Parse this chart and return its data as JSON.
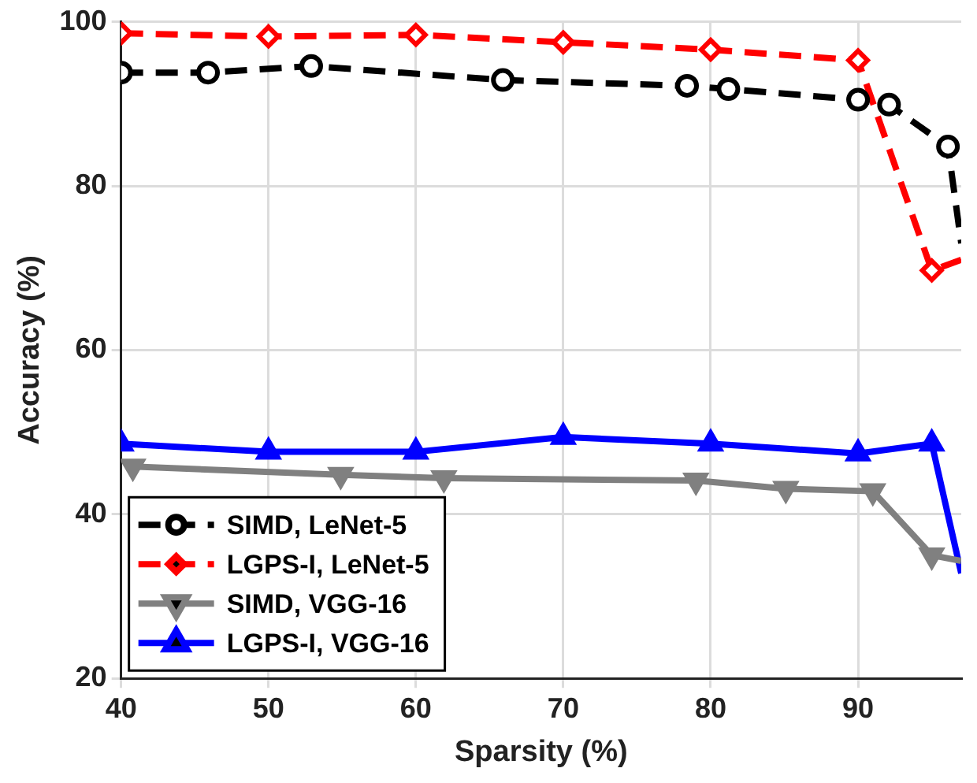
{
  "chart_data": {
    "type": "line",
    "xlabel": "Sparsity (%)",
    "ylabel": "Accuracy (%)",
    "xlim": [
      40,
      97
    ],
    "xticks": [
      40,
      50,
      60,
      70,
      80,
      90
    ],
    "ylim": [
      20,
      100
    ],
    "yticks": [
      20,
      40,
      60,
      80,
      100
    ],
    "grid": true,
    "legend": "bottom left",
    "series": [
      {
        "name": "SIMD, LeNet-5",
        "color": "#000000",
        "marker": "circle",
        "line_style": "dashed",
        "x": [
          40,
          45.9,
          52.9,
          65.9,
          78.4,
          81.2,
          90,
          92.1,
          96.1,
          97
        ],
        "values": [
          93.8,
          93.8,
          94.6,
          92.9,
          92.2,
          91.8,
          90.5,
          89.9,
          84.8,
          73
        ]
      },
      {
        "name": "LGPS-I, LeNet-5",
        "color": "#ff0000",
        "marker": "diamond",
        "line_style": "dashed",
        "x": [
          40,
          50,
          60,
          70,
          80,
          90,
          95,
          97
        ],
        "values": [
          98.6,
          98.2,
          98.4,
          97.5,
          96.6,
          95.3,
          69.7,
          71
        ]
      },
      {
        "name": "SIMD, VGG-16",
        "color": "#808080",
        "marker": "triangle-down",
        "line_style": "solid",
        "x": [
          40.8,
          54.9,
          61.9,
          79,
          85.1,
          91,
          95,
          97
        ],
        "values": [
          45.8,
          44.8,
          44.4,
          44.1,
          43.1,
          42.8,
          35,
          34.3
        ]
      },
      {
        "name": "LGPS-I, VGG-16",
        "color": "#0000ff",
        "marker": "triangle",
        "line_style": "solid",
        "x": [
          40,
          50,
          60,
          70,
          80,
          90,
          95,
          97
        ],
        "values": [
          48.6,
          47.6,
          47.6,
          49.4,
          48.6,
          47.4,
          48.6,
          32.8
        ]
      }
    ]
  }
}
